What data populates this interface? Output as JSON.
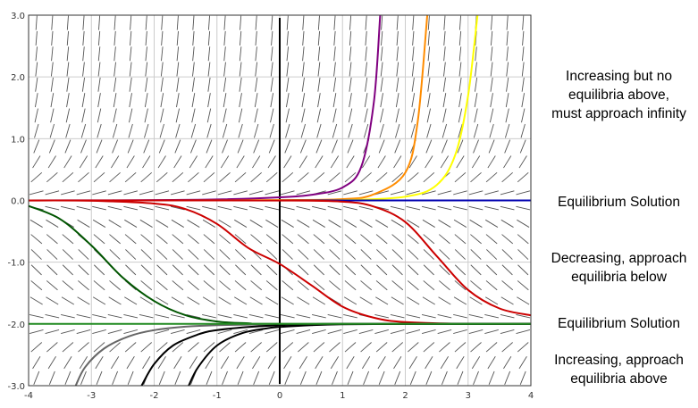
{
  "chart_data": {
    "type": "line",
    "title": "",
    "xlabel": "",
    "ylabel": "",
    "xlim": [
      -4,
      4
    ],
    "ylim": [
      -3,
      3
    ],
    "x_ticks": [
      "-4",
      "-3",
      "-2",
      "-1",
      "0",
      "1",
      "2",
      "3",
      "4"
    ],
    "y_ticks": [
      "3.0",
      "2.0",
      "1.0",
      "0.0",
      "-1.0",
      "-2.0",
      "-3.0"
    ],
    "grid": true,
    "slope_field": true,
    "colors": {
      "grid": "#cccccc",
      "slope": "#555555",
      "axis": "#000000",
      "frame": "#333333"
    },
    "series": [
      {
        "color": "#800080",
        "x": [
          -4,
          -3,
          -2,
          -1,
          0,
          0.5,
          1,
          1.3,
          1.5,
          1.6
        ],
        "y": [
          0.0006,
          0.0018,
          0.0054,
          0.0163,
          0.05,
          0.09,
          0.21,
          0.55,
          1.6,
          3.0
        ]
      },
      {
        "color": "#ff8c00",
        "x": [
          -4,
          -2,
          -1,
          0,
          1,
          1.5,
          2,
          2.2,
          2.35
        ],
        "y": [
          0.0001,
          0.0007,
          0.002,
          0.0055,
          0.021,
          0.1,
          0.45,
          1.3,
          3.0
        ]
      },
      {
        "color": "#ffff00",
        "x": [
          -4,
          -2,
          0,
          1,
          2,
          2.5,
          2.8,
          3.0,
          3.15
        ],
        "y": [
          0.0001,
          0.0002,
          0.0012,
          0.005,
          0.06,
          0.25,
          0.75,
          1.7,
          3.0
        ]
      },
      {
        "color": "#0000b0",
        "x": [
          0,
          4
        ],
        "y": [
          0,
          0
        ]
      },
      {
        "color": "#cc0000",
        "x": [
          -4,
          -3,
          -2,
          -1.5,
          -1,
          -0.5,
          0,
          0.5,
          1,
          1.5,
          2,
          3,
          4
        ],
        "y": [
          -0.0008,
          -0.006,
          -0.05,
          -0.14,
          -0.38,
          -0.77,
          -1.03,
          -1.37,
          -1.72,
          -1.9,
          -1.97,
          -2.0,
          -2.0
        ]
      },
      {
        "color": "#cc0000",
        "x": [
          -4,
          -2,
          0,
          1,
          1.5,
          2,
          2.5,
          3,
          3.5,
          4
        ],
        "y": [
          0,
          0,
          -0.001,
          -0.02,
          -0.1,
          -0.35,
          -0.9,
          -1.45,
          -1.75,
          -1.86
        ]
      },
      {
        "color": "#005500",
        "x": [
          -4,
          -3.5,
          -3,
          -2.5,
          -2,
          -1.5,
          -1,
          -0.5,
          0,
          4
        ],
        "y": [
          -0.09,
          -0.3,
          -0.73,
          -1.25,
          -1.63,
          -1.86,
          -1.96,
          -1.99,
          -2.0,
          -2.0
        ]
      },
      {
        "color": "#666666",
        "x": [
          -3.25,
          -3.1,
          -2.8,
          -2.4,
          -2.0,
          -1.5,
          -1.0,
          0,
          1,
          4
        ],
        "y": [
          -3.0,
          -2.7,
          -2.4,
          -2.2,
          -2.1,
          -2.045,
          -2.02,
          -2.005,
          -2.0,
          -2.0
        ]
      },
      {
        "color": "#000000",
        "x": [
          -2.2,
          -2.0,
          -1.7,
          -1.3,
          -1.0,
          -0.5,
          0,
          0.5,
          1,
          4
        ],
        "y": [
          -3.0,
          -2.65,
          -2.35,
          -2.17,
          -2.1,
          -2.05,
          -2.02,
          -2.005,
          -2.0,
          -2.0
        ]
      },
      {
        "color": "#000000",
        "x": [
          -1.45,
          -1.3,
          -1.0,
          -0.6,
          -0.2,
          0,
          0.5,
          1,
          2,
          4
        ],
        "y": [
          -3.0,
          -2.7,
          -2.35,
          -2.15,
          -2.07,
          -2.05,
          -2.02,
          -2.005,
          -2.0,
          -2.0
        ]
      },
      {
        "color": "#228b22",
        "x": [
          -4,
          4
        ],
        "y": [
          -2,
          -2
        ]
      }
    ],
    "annotations": [
      {
        "lines": [
          "Increasing but no",
          "equilibria above,",
          "must approach infinity"
        ]
      },
      {
        "lines": [
          "Equilibrium Solution"
        ]
      },
      {
        "lines": [
          "Decreasing, approach",
          "equilibria below"
        ]
      },
      {
        "lines": [
          "Equilibrium Solution"
        ]
      },
      {
        "lines": [
          "Increasing, approach",
          "equilibria above"
        ]
      }
    ]
  }
}
